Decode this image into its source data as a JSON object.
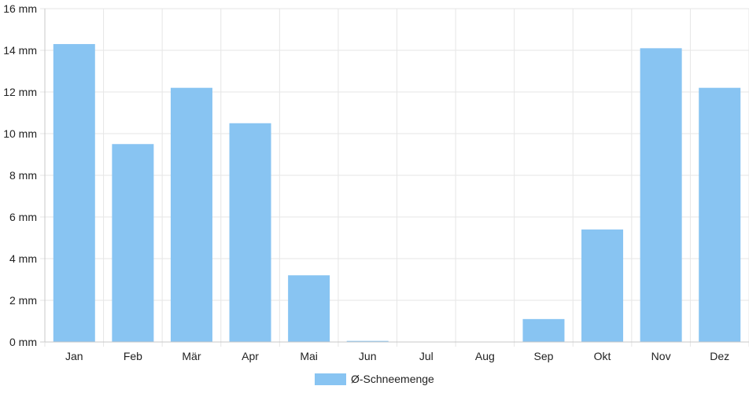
{
  "chart_data": {
    "type": "bar",
    "title": "",
    "xlabel": "",
    "ylabel": "",
    "y_unit": "mm",
    "ylim": [
      0,
      16
    ],
    "y_tick_step": 2,
    "grid": true,
    "legend_position": "bottom-center",
    "categories": [
      "Jan",
      "Feb",
      "Mär",
      "Apr",
      "Mai",
      "Jun",
      "Jul",
      "Aug",
      "Sep",
      "Okt",
      "Nov",
      "Dez"
    ],
    "series": [
      {
        "name": "Ø-Schneemenge",
        "color": "#88c4f2",
        "values": [
          14.3,
          9.5,
          12.2,
          10.5,
          3.2,
          0.05,
          0,
          0,
          1.1,
          5.4,
          14.1,
          12.2
        ]
      }
    ]
  }
}
